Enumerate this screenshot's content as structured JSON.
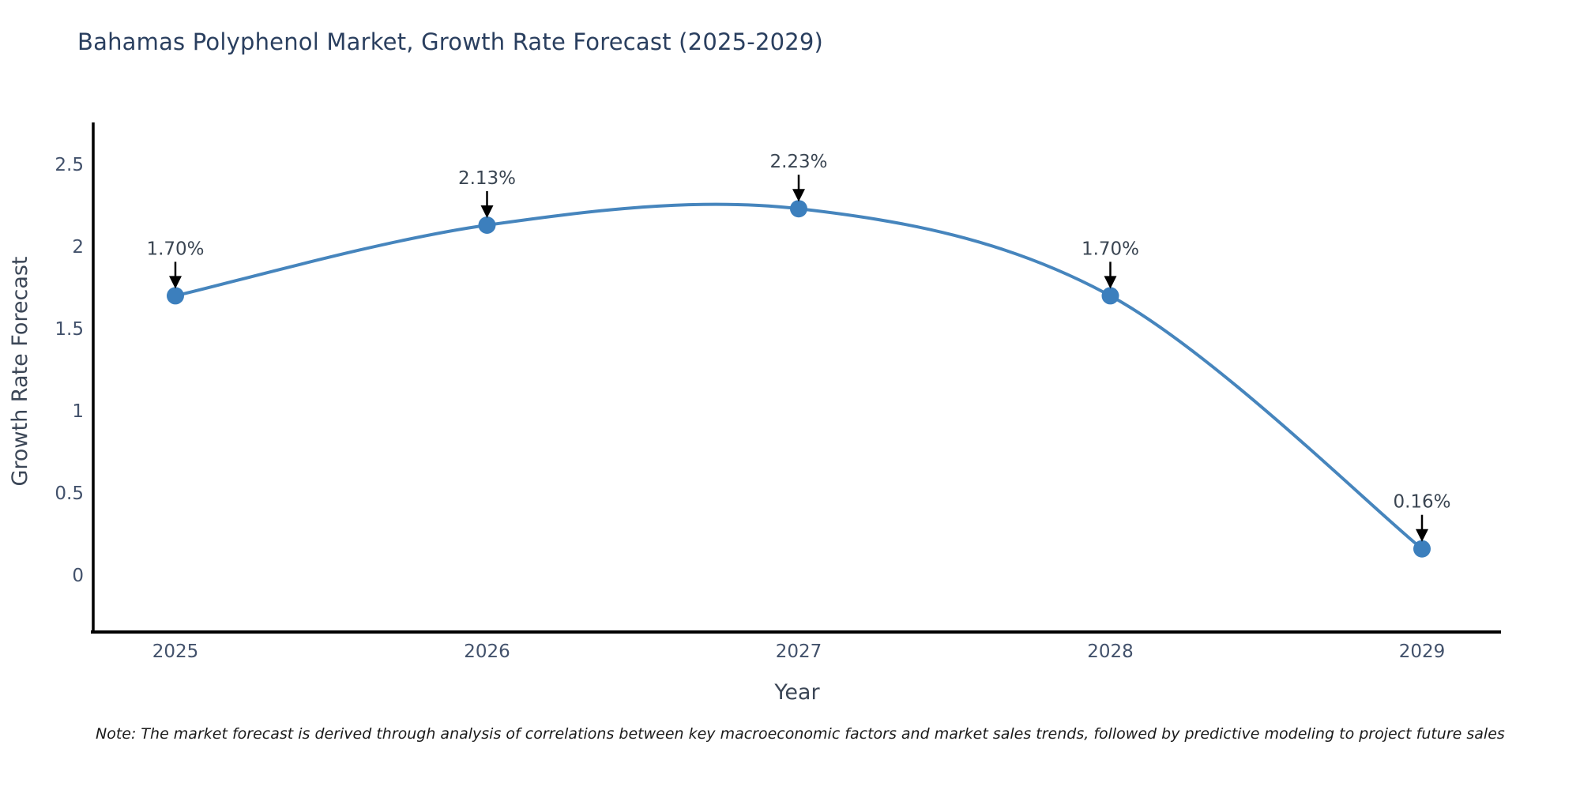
{
  "page": {
    "title": "Bahamas Polyphenol Market, Growth Rate Forecast (2025-2029)",
    "note": "Note: The market forecast is derived through analysis of correlations between key macroeconomic factors and market sales trends, followed by predictive modeling to project future sales"
  },
  "chart_data": {
    "type": "line",
    "title": "Bahamas Polyphenol Market, Growth Rate Forecast (2025-2029)",
    "xlabel": "Year",
    "ylabel": "Growth Rate Forecast",
    "x": [
      2025,
      2026,
      2027,
      2028,
      2029
    ],
    "y": [
      1.7,
      2.13,
      2.23,
      1.7,
      0.16
    ],
    "point_labels": [
      "1.70%",
      "2.13%",
      "2.23%",
      "1.70%",
      "0.16%"
    ],
    "x_tick_labels": [
      "2025",
      "2026",
      "2027",
      "2028",
      "2029"
    ],
    "y_ticks": [
      0,
      0.5,
      1,
      1.5,
      2,
      2.5
    ],
    "y_tick_labels": [
      "0",
      "0.5",
      "1",
      "1.5",
      "2",
      "2.5"
    ],
    "xlim": [
      2024.74,
      2029.26
    ],
    "ylim": [
      -0.35,
      2.76
    ],
    "grid": false,
    "legend": null,
    "marker": "circle",
    "annotation_arrows": true,
    "colors": {
      "line": "#4685bd",
      "marker": "#3c7fbd",
      "arrow": "#000000",
      "spine": "#000000",
      "title_text": "#2a3f5f",
      "axis_label_text": "#3b4656",
      "tick_text": "#42516b",
      "annotation_text": "#3a4552",
      "note_text": "#1a1a1a",
      "background": "#ffffff"
    }
  }
}
